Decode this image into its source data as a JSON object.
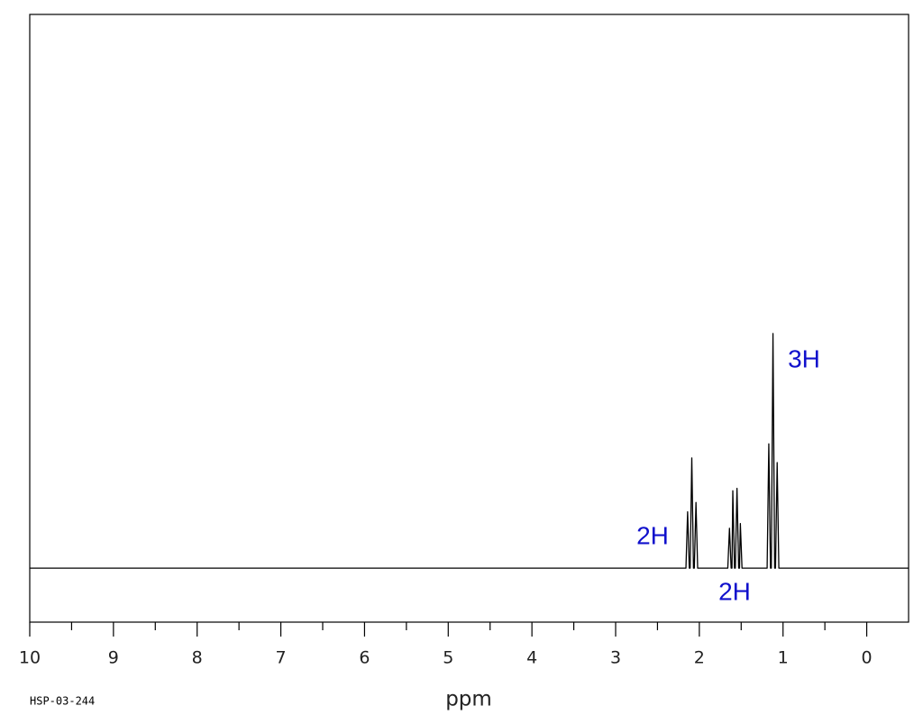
{
  "chart_data": {
    "type": "line",
    "code": "HSP-03-244",
    "x_label": "ppm",
    "xlim": [
      10,
      -0.5
    ],
    "xticks": [
      10,
      9,
      8,
      7,
      6,
      5,
      4,
      3,
      2,
      1,
      0
    ],
    "xminorticks": [
      9.5,
      8.5,
      7.5,
      6.5,
      5.5,
      4.5,
      3.5,
      2.5,
      1.5,
      0.5
    ],
    "ylim": [
      -23,
      236
    ],
    "series": [
      {
        "color": "#000000",
        "x": [
          10,
          2.2,
          2.16,
          2.14,
          2.12,
          2.11,
          2.09,
          2.07,
          2.06,
          2.04,
          2.02,
          1.7,
          1.66,
          1.64,
          1.62,
          1.61,
          1.6,
          1.58,
          1.57,
          1.55,
          1.53,
          1.52,
          1.51,
          1.49,
          1.2,
          1.19,
          1.17,
          1.15,
          1.14,
          1.12,
          1.1,
          1.09,
          1.07,
          1.05,
          -0.5
        ],
        "values": [
          0,
          0,
          0,
          24,
          0,
          0,
          47,
          0,
          0,
          28,
          0,
          0,
          0,
          17,
          0,
          0,
          33,
          0,
          0,
          34,
          0,
          0,
          19,
          0,
          0,
          0,
          53,
          0,
          0,
          100,
          0,
          0,
          45,
          0,
          0
        ]
      }
    ],
    "annotation_color": "#1010cc",
    "annotations": [
      "2H",
      "2H",
      "3H"
    ]
  }
}
